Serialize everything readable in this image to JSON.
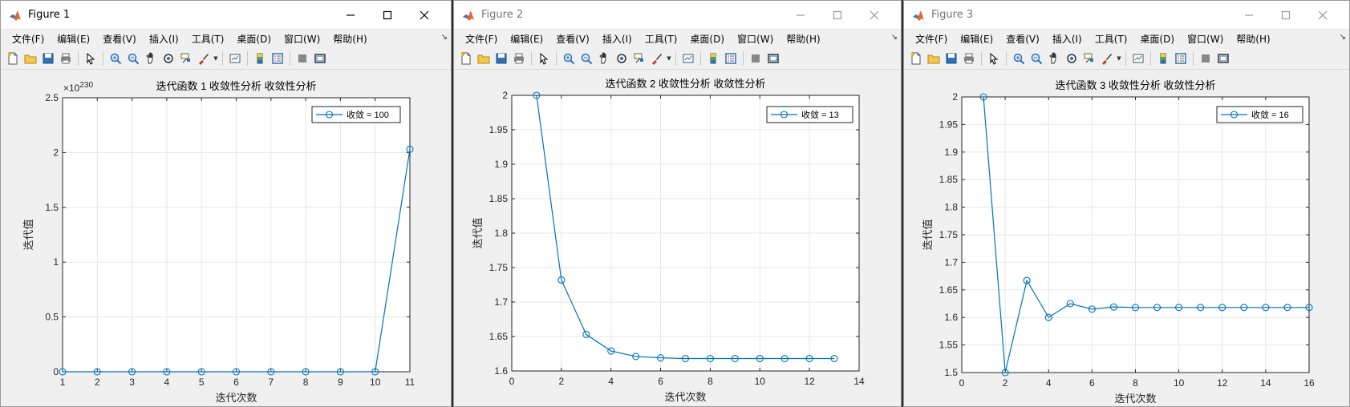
{
  "windows": [
    {
      "title": "Figure 1",
      "active": true,
      "menus": [
        "文件(F)",
        "编辑(E)",
        "查看(V)",
        "插入(I)",
        "工具(T)",
        "桌面(D)",
        "窗口(W)",
        "帮助(H)"
      ],
      "chart_data": {
        "type": "line",
        "title": "迭代函数 1 收敛性分析 收敛性分析",
        "xlabel": "迭代次数",
        "ylabel": "迭代值",
        "xlim": [
          1,
          11
        ],
        "ylim": [
          0,
          2.5
        ],
        "y_exponent_label": "×10",
        "y_exponent": "230",
        "xticks": [
          1,
          2,
          3,
          4,
          5,
          6,
          7,
          8,
          9,
          10,
          11
        ],
        "yticks": [
          0,
          0.5,
          1,
          1.5,
          2,
          2.5
        ],
        "grid": true,
        "legend_position": "top-right",
        "series": [
          {
            "name": "收敛 = 100",
            "color": "#0072bd",
            "marker": "circle",
            "x": [
              1,
              2,
              3,
              4,
              5,
              6,
              7,
              8,
              9,
              10,
              11
            ],
            "y": [
              0,
              0,
              0,
              0,
              0,
              0,
              0,
              0,
              0,
              0,
              2.03
            ]
          }
        ]
      }
    },
    {
      "title": "Figure 2",
      "active": false,
      "menus": [
        "文件(F)",
        "编辑(E)",
        "查看(V)",
        "插入(I)",
        "工具(T)",
        "桌面(D)",
        "窗口(W)",
        "帮助(H)"
      ],
      "chart_data": {
        "type": "line",
        "title": "迭代函数 2 收敛性分析 收敛性分析",
        "xlabel": "迭代次数",
        "ylabel": "迭代值",
        "xlim": [
          0,
          14
        ],
        "ylim": [
          1.6,
          2
        ],
        "xticks": [
          0,
          2,
          4,
          6,
          8,
          10,
          12,
          14
        ],
        "yticks": [
          1.6,
          1.65,
          1.7,
          1.75,
          1.8,
          1.85,
          1.9,
          1.95,
          2
        ],
        "grid": true,
        "legend_position": "top-right",
        "series": [
          {
            "name": "收敛 = 13",
            "color": "#0072bd",
            "marker": "circle",
            "x": [
              1,
              2,
              3,
              4,
              5,
              6,
              7,
              8,
              9,
              10,
              11,
              12,
              13
            ],
            "y": [
              2,
              1.732,
              1.653,
              1.629,
              1.621,
              1.619,
              1.618,
              1.618,
              1.618,
              1.618,
              1.618,
              1.618,
              1.618
            ]
          }
        ]
      }
    },
    {
      "title": "Figure 3",
      "active": false,
      "menus": [
        "文件(F)",
        "编辑(E)",
        "查看(V)",
        "插入(I)",
        "工具(T)",
        "桌面(D)",
        "窗口(W)",
        "帮助(H)"
      ],
      "chart_data": {
        "type": "line",
        "title": "迭代函数 3 收敛性分析 收敛性分析",
        "xlabel": "迭代次数",
        "ylabel": "迭代值",
        "xlim": [
          0,
          16
        ],
        "ylim": [
          1.5,
          2
        ],
        "xticks": [
          0,
          2,
          4,
          6,
          8,
          10,
          12,
          14,
          16
        ],
        "yticks": [
          1.5,
          1.55,
          1.6,
          1.65,
          1.7,
          1.75,
          1.8,
          1.85,
          1.9,
          1.95,
          2
        ],
        "grid": true,
        "legend_position": "top-right",
        "series": [
          {
            "name": "收敛 = 16",
            "color": "#0072bd",
            "marker": "circle",
            "x": [
              1,
              2,
              3,
              4,
              5,
              6,
              7,
              8,
              9,
              10,
              11,
              12,
              13,
              14,
              15,
              16
            ],
            "y": [
              2,
              1.5,
              1.667,
              1.6,
              1.625,
              1.615,
              1.619,
              1.618,
              1.618,
              1.618,
              1.618,
              1.618,
              1.618,
              1.618,
              1.618,
              1.618
            ]
          }
        ]
      }
    }
  ]
}
